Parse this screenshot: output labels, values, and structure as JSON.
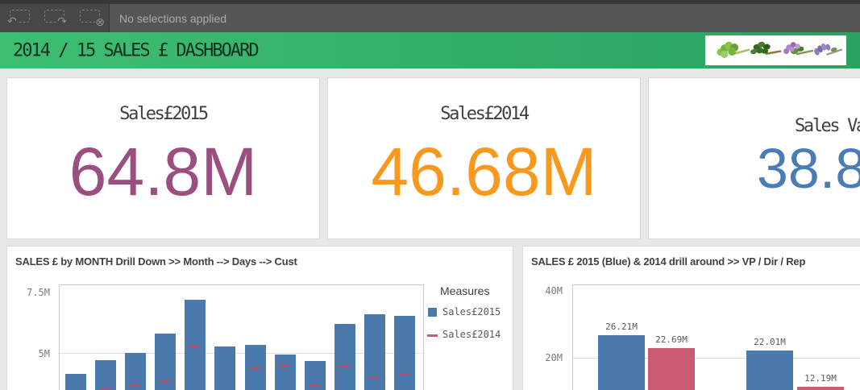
{
  "toolbar": {
    "status_text": "No selections applied",
    "icons": [
      {
        "name": "step-back-selection",
        "glyph": "↶"
      },
      {
        "name": "step-forward-selection",
        "glyph": "↷"
      },
      {
        "name": "clear-all-selections",
        "glyph": "⊗"
      }
    ]
  },
  "header": {
    "title": "2014 / 15 SALES £ DASHBOARD",
    "bg_gradient": [
      "#3ebe72",
      "#2aa161"
    ]
  },
  "kpis": [
    {
      "title": "Sales£2015",
      "value": "64.8M",
      "color": "#9a4f80"
    },
    {
      "title": "Sales£2014",
      "value": "46.68M",
      "color": "#f8981d"
    },
    {
      "title": "Sales Va",
      "value": "38.8",
      "color": "#4a7cb5",
      "cut_off_right": true
    }
  ],
  "chart_data": [
    {
      "type": "bar",
      "title": "SALES £ by MONTH Drill Down >> Month --> Days --> Cust",
      "y_ticks": [
        {
          "label": "7.5M",
          "value": 7.5
        },
        {
          "label": "5M",
          "value": 5
        }
      ],
      "x_labels_cut_off": true,
      "values_estimated_from_gridlines": true,
      "legend": {
        "title": "Measures",
        "items": [
          {
            "label": "Sales£2015",
            "swatch": "square",
            "color": "#4a79ab"
          },
          {
            "label": "Sales£2014",
            "swatch": "dash",
            "color": "#c95c72"
          }
        ]
      },
      "series": [
        {
          "name": "Sales£2015",
          "mark": "bar",
          "color": "#4a79ab",
          "values": [
            4.25,
            4.75,
            5.0,
            5.7,
            6.95,
            5.25,
            5.3,
            4.95,
            4.7,
            6.05,
            6.4,
            6.35
          ]
        },
        {
          "name": "Sales£2014",
          "mark": "tick",
          "color": "#c95c72",
          "values": [
            null,
            3.65,
            3.8,
            3.95,
            5.2,
            null,
            4.4,
            4.5,
            3.8,
            4.5,
            4.1,
            4.2
          ]
        }
      ],
      "unit": "M"
    },
    {
      "type": "grouped-bar",
      "title": "SALES £ 2015 (Blue) & 2014 drill around >> VP / Dir / Rep",
      "y_ticks": [
        {
          "label": "40M",
          "value": 40
        },
        {
          "label": "20M",
          "value": 20
        }
      ],
      "x_labels_cut_off": true,
      "groups": [
        {
          "bars": [
            {
              "series": "Sales£2015",
              "value": 26.21,
              "label": "26.21M",
              "color": "#4a79ab"
            },
            {
              "series": "Sales£2014",
              "value": 22.69,
              "label": "22.69M",
              "color": "#c95c72"
            }
          ]
        },
        {
          "bars": [
            {
              "series": "Sales£2015",
              "value": 22.01,
              "label": "22.01M",
              "color": "#4a79ab"
            },
            {
              "series": "Sales£2014",
              "value": 12.19,
              "label": "12.19M",
              "color": "#c95c72"
            }
          ]
        }
      ],
      "unit": "M"
    }
  ],
  "colors": {
    "bar_blue": "#4a79ab",
    "bar_red": "#c95c72",
    "kpi_purple": "#9a4f80",
    "kpi_orange": "#f8981d",
    "kpi_blue": "#4a7cb5"
  }
}
